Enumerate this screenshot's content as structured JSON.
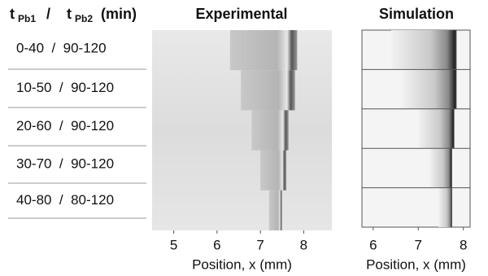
{
  "header": {
    "t1": "t",
    "sub1": "Pb1",
    "slash": "/",
    "t2": "t",
    "sub2": "Pb2",
    "unit": "(min)"
  },
  "rows": [
    "0-40  /  90-120",
    "10-50  /  90-120",
    "20-60  /  90-120",
    "30-70  /  90-120",
    "40-80  /  80-120"
  ],
  "panels": [
    {
      "title": "Experimental",
      "xlabel": "Position, x (mm)",
      "xlim": [
        4.5,
        8.65
      ],
      "xticks": [
        5,
        6,
        7,
        8
      ],
      "bands": [
        [
          6.3,
          7.85
        ],
        [
          6.55,
          7.8
        ],
        [
          6.8,
          7.65
        ],
        [
          7.0,
          7.6
        ],
        [
          7.2,
          7.5
        ]
      ]
    },
    {
      "title": "Simulation",
      "xlabel": "Position, x (mm)",
      "xlim": [
        5.75,
        8.15
      ],
      "xticks": [
        6,
        7,
        8
      ],
      "bands": [
        [
          6.4,
          7.85
        ],
        [
          6.65,
          7.85
        ],
        [
          7.0,
          7.8
        ],
        [
          7.25,
          7.75
        ],
        [
          7.45,
          7.75
        ]
      ]
    }
  ]
}
